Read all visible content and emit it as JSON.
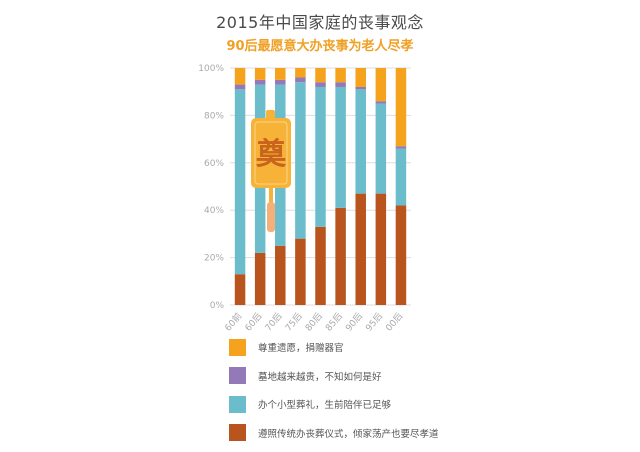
{
  "header": {
    "title": "2015年中国家庭的丧事观念",
    "subtitle": "90后最愿意大办丧事为老人尽孝"
  },
  "badge": {
    "text": "奠"
  },
  "colors": {
    "respect": "#f5a21d",
    "grave": "#9379b8",
    "simple": "#6bbdcc",
    "traditional": "#b9541f",
    "grid": "#dddddd",
    "axis_text": "#aaaaaa",
    "badge_fill": "#f7b337",
    "badge_text": "#c8641e",
    "tassel": "#f5b07a"
  },
  "chart_data": {
    "type": "bar",
    "stacked": true,
    "categories": [
      "60前",
      "60后",
      "70后",
      "75后",
      "80后",
      "85后",
      "90后",
      "95后",
      "00后"
    ],
    "yticks": [
      "0%",
      "20%",
      "40%",
      "60%",
      "80%",
      "100%"
    ],
    "ylim": [
      0,
      100
    ],
    "series": [
      {
        "name": "遵照传统办丧葬仪式，倾家荡产也要尽孝道",
        "color": "#b9541f",
        "values": [
          13,
          22,
          25,
          28,
          33,
          41,
          47,
          47,
          42
        ]
      },
      {
        "name": "办个小型葬礼，生前陪伴已足够",
        "color": "#6bbdcc",
        "values": [
          78,
          71,
          68,
          66,
          59,
          51,
          44,
          38,
          24
        ]
      },
      {
        "name": "墓地越来越贵，不知如何是好",
        "color": "#9379b8",
        "values": [
          2,
          2,
          2,
          2,
          2,
          2,
          1,
          1,
          1
        ]
      },
      {
        "name": "尊重遗愿，捐赠器官",
        "color": "#f5a21d",
        "values": [
          7,
          5,
          5,
          4,
          6,
          6,
          8,
          14,
          33
        ]
      }
    ],
    "grid": true,
    "legend": "bottom"
  },
  "legend": [
    {
      "label": "尊重遗愿，捐赠器官",
      "color": "#f5a21d"
    },
    {
      "label": "墓地越来越贵，不知如何是好",
      "color": "#9379b8"
    },
    {
      "label": "办个小型葬礼，生前陪伴已足够",
      "color": "#6bbdcc"
    },
    {
      "label": "遵照传统办丧葬仪式，倾家荡产也要尽孝道",
      "color": "#b9541f"
    }
  ]
}
